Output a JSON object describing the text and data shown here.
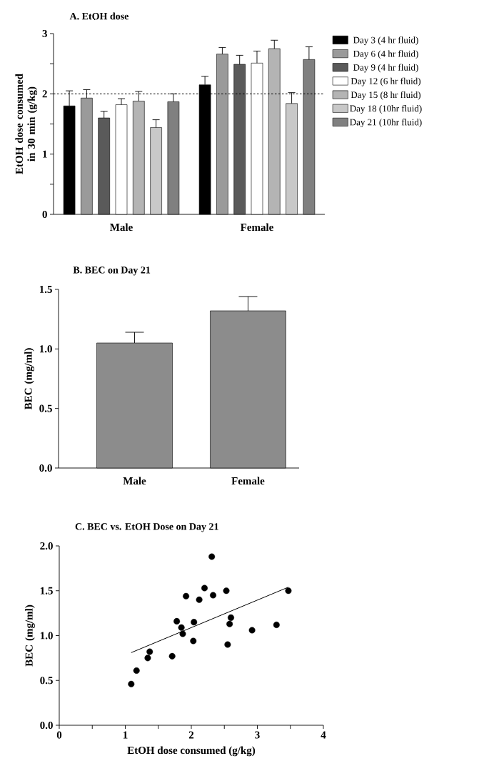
{
  "chart_data": [
    {
      "type": "bar",
      "title": "A. EtOH dose",
      "ylabel": "EtOH dose consumed in 30 min (g/kg)",
      "categories": [
        "Male",
        "Female"
      ],
      "series": [
        {
          "name": "Day 3 (4 hr fluid)",
          "color": "#000000",
          "values": [
            1.8,
            2.15
          ],
          "errors": [
            [
              1.8,
              2.05
            ],
            [
              2.15,
              2.29
            ]
          ]
        },
        {
          "name": "Day 6 (4 hr fluid)",
          "color": "#9a9a9a",
          "values": [
            1.93,
            2.66
          ],
          "errors": [
            [
              1.93,
              2.07
            ],
            [
              2.66,
              2.77
            ]
          ]
        },
        {
          "name": "Day 9 (4 hr fluid)",
          "color": "#5a5a5a",
          "values": [
            1.6,
            2.49
          ],
          "errors": [
            [
              1.6,
              1.71
            ],
            [
              2.49,
              2.64
            ]
          ]
        },
        {
          "name": "Day 12 (6 hr fluid)",
          "color": "#ffffff",
          "values": [
            1.82,
            2.51
          ],
          "errors": [
            [
              1.82,
              1.92
            ],
            [
              2.51,
              2.71
            ]
          ]
        },
        {
          "name": "Day 15 (8 hr fluid)",
          "color": "#b4b4b4",
          "values": [
            1.88,
            2.75
          ],
          "errors": [
            [
              1.88,
              2.04
            ],
            [
              2.75,
              2.89
            ]
          ]
        },
        {
          "name": "Day 18 (10hr fluid)",
          "color": "#c8c8c8",
          "values": [
            1.44,
            1.84
          ],
          "errors": [
            [
              1.44,
              1.57
            ],
            [
              1.84,
              2.02
            ]
          ]
        },
        {
          "name": "Day 21 (10hr fluid)",
          "color": "#808080",
          "values": [
            1.87,
            2.57
          ],
          "errors": [
            [
              1.87,
              2.0
            ],
            [
              2.57,
              2.78
            ]
          ]
        }
      ],
      "ylim": [
        0,
        3
      ],
      "yticks": [
        0,
        {
          "value": 0.5,
          "label": null
        },
        1,
        {
          "value": 1.5,
          "label": null
        },
        2,
        {
          "value": 2.5,
          "label": null
        },
        3
      ],
      "ref_lines": [
        {
          "axis": "y",
          "value": 2,
          "line_style": "dotted"
        }
      ],
      "legend": "right"
    },
    {
      "type": "bar",
      "title": "B. BEC on Day 21",
      "ylabel": "BEC (mg/ml)",
      "categories": [
        "Male",
        "Female"
      ],
      "values": [
        1.05,
        1.32
      ],
      "errors": [
        [
          1.05,
          1.14
        ],
        [
          1.32,
          1.44
        ]
      ],
      "color": "#8c8c8c",
      "ylim": [
        0,
        1.5
      ],
      "yticks": [
        {
          "value": 0,
          "label": "0.0"
        },
        {
          "value": 0.5,
          "label": "0.5"
        },
        {
          "value": 1,
          "label": "1.0"
        },
        {
          "value": 1.5,
          "label": "1.5"
        }
      ]
    },
    {
      "type": "scatter",
      "title": "C. BEC vs. EtOH Dose on Day 21",
      "xlabel": "EtOH dose consumed (g/kg)",
      "ylabel": "BEC (mg/ml)",
      "series": [
        {
          "type": "scatter",
          "color": "#000000",
          "marker": "circle",
          "x": [
            1.09,
            1.17,
            1.34,
            1.37,
            1.71,
            1.78,
            1.85,
            1.87,
            1.92,
            2.03,
            2.04,
            2.12,
            2.2,
            2.31,
            2.33,
            2.53,
            2.55,
            2.58,
            2.6,
            2.92,
            3.29,
            3.47
          ],
          "values": [
            0.46,
            0.61,
            0.75,
            0.82,
            0.77,
            1.16,
            1.09,
            1.02,
            1.44,
            0.94,
            1.15,
            1.4,
            1.53,
            1.88,
            1.45,
            1.5,
            0.9,
            1.13,
            1.2,
            1.06,
            1.12,
            1.5
          ]
        },
        {
          "type": "line",
          "color": "#000000",
          "marker": "none",
          "x": [
            1.09,
            3.47
          ],
          "values": [
            0.81,
            1.54
          ]
        }
      ],
      "xlim": [
        0,
        4
      ],
      "xticks": [
        0,
        {
          "value": 0.5,
          "label": null
        },
        1,
        {
          "value": 1.5,
          "label": null
        },
        2,
        {
          "value": 2.5,
          "label": null
        },
        3,
        {
          "value": 3.5,
          "label": null
        },
        4
      ],
      "ylim": [
        0,
        2
      ],
      "yticks": [
        {
          "value": 0,
          "label": "0.0"
        },
        {
          "value": 0.5,
          "label": "0.5"
        },
        {
          "value": 1,
          "label": "1.0"
        },
        {
          "value": 1.5,
          "label": "1.5"
        },
        {
          "value": 2,
          "label": "2.0"
        }
      ]
    }
  ]
}
